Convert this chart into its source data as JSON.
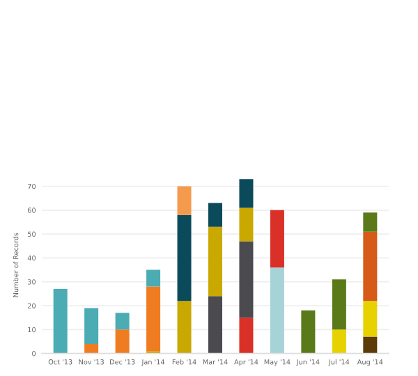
{
  "chart_data": {
    "type": "bar",
    "stacked": true,
    "ylabel": "Number of Records",
    "categories": [
      "Oct '13",
      "Nov '13",
      "Dec '13",
      "Jan '14",
      "Feb '14",
      "Mar '14",
      "Apr '14",
      "May '14",
      "Jun '14",
      "Jul '14",
      "Aug '14"
    ],
    "series": [
      {
        "color": "#5c3a0a",
        "values": [
          null,
          null,
          null,
          null,
          null,
          null,
          null,
          null,
          null,
          null,
          7
        ]
      },
      {
        "color": "#e6d200",
        "values": [
          null,
          null,
          null,
          null,
          null,
          null,
          null,
          null,
          null,
          10,
          15
        ]
      },
      {
        "color": "#a6d3d8",
        "values": [
          null,
          null,
          null,
          null,
          null,
          null,
          null,
          36,
          null,
          null,
          null
        ]
      },
      {
        "color": "#d93028",
        "values": [
          null,
          null,
          null,
          null,
          null,
          null,
          15,
          24,
          null,
          null,
          null
        ]
      },
      {
        "color": "#4a4a4f",
        "values": [
          null,
          null,
          null,
          null,
          null,
          24,
          32,
          null,
          null,
          null,
          null
        ]
      },
      {
        "color": "#c9a800",
        "values": [
          null,
          null,
          null,
          1,
          22,
          29,
          14,
          null,
          null,
          null,
          null
        ]
      },
      {
        "color": "#f07c22",
        "values": [
          null,
          4,
          10,
          27,
          null,
          null,
          null,
          null,
          null,
          null,
          null
        ]
      },
      {
        "color": "#0b4a5a",
        "values": [
          null,
          null,
          null,
          null,
          36,
          10,
          12,
          null,
          null,
          null,
          null
        ]
      },
      {
        "color": "#f39a4c",
        "values": [
          null,
          null,
          null,
          null,
          12,
          null,
          null,
          null,
          null,
          null,
          null
        ]
      },
      {
        "color": "#4bacb4",
        "values": [
          27,
          15,
          7,
          7,
          null,
          null,
          null,
          null,
          null,
          null,
          null
        ]
      },
      {
        "color": "#d65a18",
        "values": [
          null,
          null,
          null,
          null,
          null,
          null,
          null,
          null,
          null,
          null,
          29
        ]
      },
      {
        "color": "#5a7a1a",
        "values": [
          null,
          null,
          null,
          null,
          null,
          null,
          null,
          null,
          18,
          21,
          8
        ]
      }
    ],
    "ylim": [
      0,
      74
    ],
    "yticks": [
      0,
      10,
      20,
      30,
      40,
      50,
      60,
      70
    ],
    "grid": "y",
    "legend": false
  }
}
